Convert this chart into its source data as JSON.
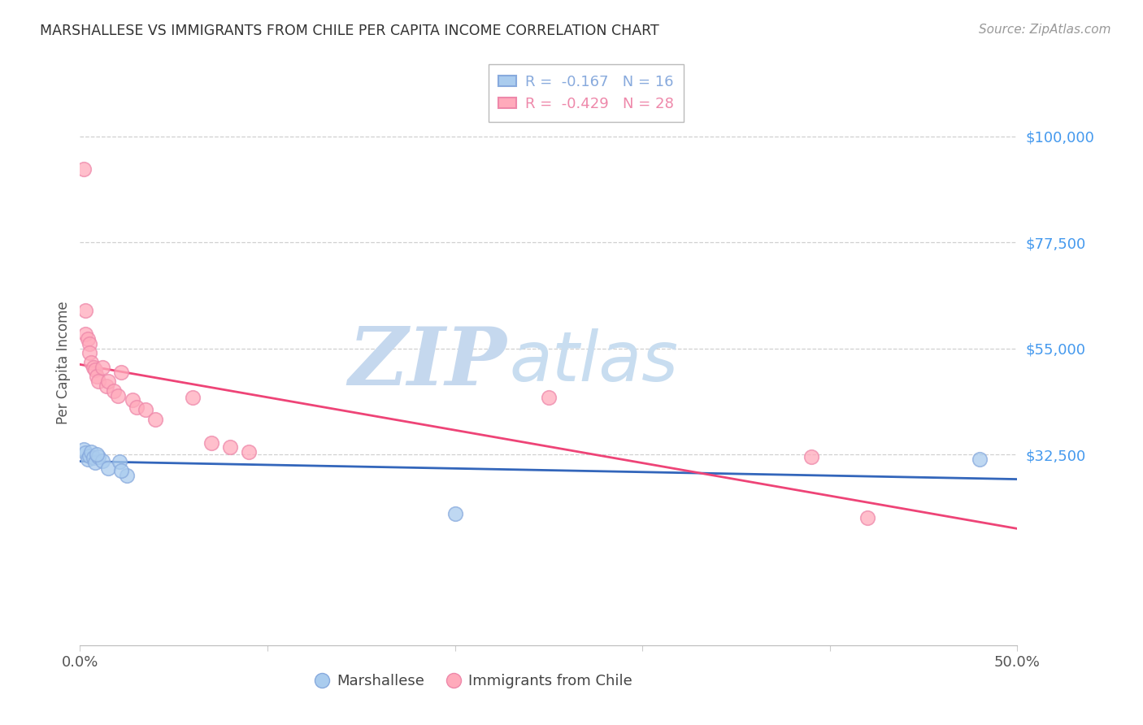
{
  "title": "MARSHALLESE VS IMMIGRANTS FROM CHILE PER CAPITA INCOME CORRELATION CHART",
  "source": "Source: ZipAtlas.com",
  "ylabel": "Per Capita Income",
  "xlim": [
    0.0,
    0.5
  ],
  "ylim": [
    -8000,
    112000
  ],
  "yticks": [
    32500,
    55000,
    77500,
    100000
  ],
  "ytick_labels": [
    "$32,500",
    "$55,000",
    "$77,500",
    "$100,000"
  ],
  "xticks": [
    0.0,
    0.1,
    0.2,
    0.3,
    0.4,
    0.5
  ],
  "xtick_labels_shown": [
    "0.0%",
    "",
    "",
    "",
    "",
    "50.0%"
  ],
  "bg_color": "#ffffff",
  "grid_color": "#d0d0d0",
  "blue_scatter_ec": "#88aadd",
  "blue_scatter_fc": "#aaccee",
  "pink_scatter_ec": "#ee88aa",
  "pink_scatter_fc": "#ffaabb",
  "blue_line_color": "#3366bb",
  "pink_line_color": "#ee4477",
  "right_tick_color": "#4499ee",
  "title_color": "#333333",
  "source_color": "#999999",
  "ylabel_color": "#555555",
  "r_blue": -0.167,
  "n_blue": 16,
  "r_pink": -0.429,
  "n_pink": 28,
  "blue_x": [
    0.002,
    0.003,
    0.004,
    0.005,
    0.006,
    0.007,
    0.008,
    0.01,
    0.012,
    0.015,
    0.021,
    0.025,
    0.48,
    0.2,
    0.022,
    0.009
  ],
  "blue_y": [
    33500,
    32800,
    31500,
    32200,
    33000,
    31800,
    30800,
    32000,
    31200,
    29500,
    31000,
    28000,
    31500,
    20000,
    29000,
    32500
  ],
  "pink_x": [
    0.002,
    0.003,
    0.003,
    0.004,
    0.005,
    0.005,
    0.006,
    0.007,
    0.008,
    0.009,
    0.01,
    0.012,
    0.014,
    0.015,
    0.018,
    0.02,
    0.022,
    0.028,
    0.03,
    0.035,
    0.04,
    0.06,
    0.07,
    0.08,
    0.09,
    0.25,
    0.39,
    0.42
  ],
  "pink_y": [
    93000,
    63000,
    58000,
    57000,
    56000,
    54000,
    52000,
    51000,
    50500,
    49000,
    48000,
    51000,
    47000,
    48000,
    46000,
    45000,
    50000,
    44000,
    42500,
    42000,
    40000,
    44500,
    35000,
    34000,
    33000,
    44500,
    32000,
    19000
  ],
  "watermark_zip_color": "#c5d8ee",
  "watermark_atlas_color": "#c8ddf0",
  "legend_label_blue": "Marshallese",
  "legend_label_pink": "Immigrants from Chile"
}
